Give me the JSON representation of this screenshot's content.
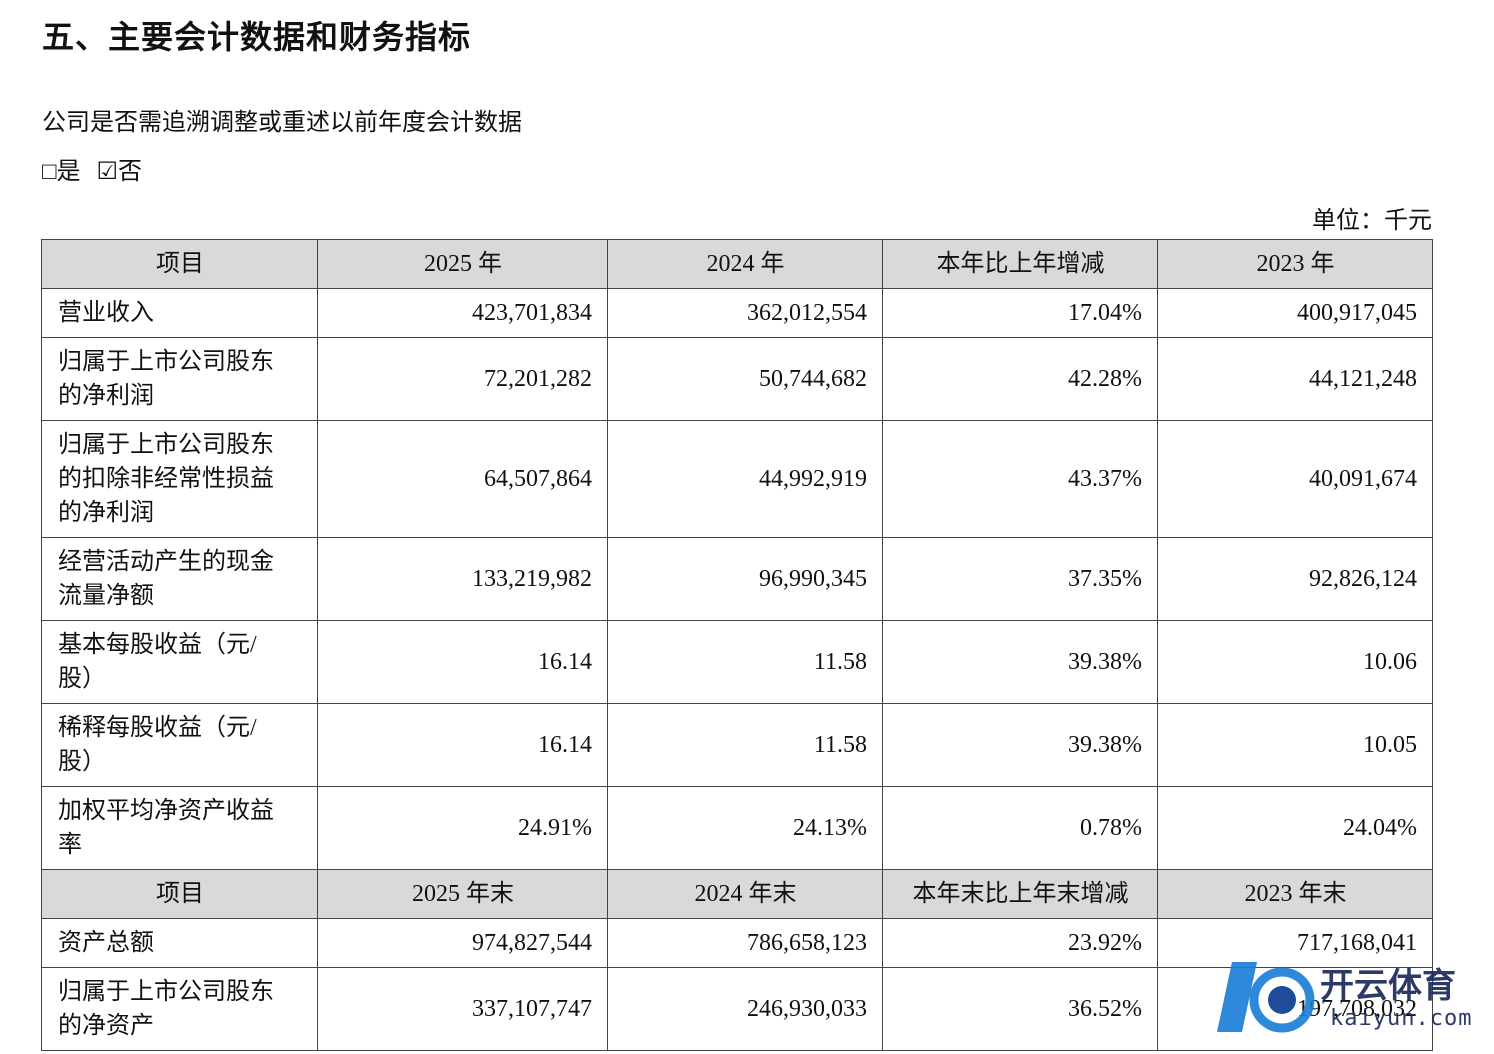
{
  "title": "五、主要会计数据和财务指标",
  "question": "公司是否需追溯调整或重述以前年度会计数据",
  "options": [
    "□是",
    "☑否"
  ],
  "unit": "单位：千元",
  "sections": [
    {
      "header": [
        "项目",
        "2025 年",
        "2024 年",
        "本年比上年增减",
        "2023 年"
      ],
      "rows": [
        {
          "label": [
            "营业收入"
          ],
          "cells": [
            "423,701,834",
            "362,012,554",
            "17.04%",
            "400,917,045"
          ]
        },
        {
          "label": [
            "归属于上市公司股东",
            "的净利润"
          ],
          "cells": [
            "72,201,282",
            "50,744,682",
            "42.28%",
            "44,121,248"
          ]
        },
        {
          "label": [
            "归属于上市公司股东",
            "的扣除非经常性损益",
            "的净利润"
          ],
          "cells": [
            "64,507,864",
            "44,992,919",
            "43.37%",
            "40,091,674"
          ]
        },
        {
          "label": [
            "经营活动产生的现金",
            "流量净额"
          ],
          "cells": [
            "133,219,982",
            "96,990,345",
            "37.35%",
            "92,826,124"
          ]
        },
        {
          "label": [
            "基本每股收益（元/",
            "股）"
          ],
          "cells": [
            "16.14",
            "11.58",
            "39.38%",
            "10.06"
          ]
        },
        {
          "label": [
            "稀释每股收益（元/",
            "股）"
          ],
          "cells": [
            "16.14",
            "11.58",
            "39.38%",
            "10.05"
          ]
        },
        {
          "label": [
            "加权平均净资产收益",
            "率"
          ],
          "cells": [
            "24.91%",
            "24.13%",
            "0.78%",
            "24.04%"
          ]
        }
      ]
    },
    {
      "header": [
        "项目",
        "2025 年末",
        "2024 年末",
        "本年末比上年末增减",
        "2023 年末"
      ],
      "rows": [
        {
          "label": [
            "资产总额"
          ],
          "cells": [
            "974,827,544",
            "786,658,123",
            "23.92%",
            "717,168,041"
          ]
        },
        {
          "label": [
            "归属于上市公司股东",
            "的净资产"
          ],
          "cells": [
            "337,107,747",
            "246,930,033",
            "36.52%",
            "197,708,032"
          ]
        }
      ]
    }
  ],
  "watermark": {
    "brand": "开云体育",
    "domain": "kaiyun.com"
  }
}
